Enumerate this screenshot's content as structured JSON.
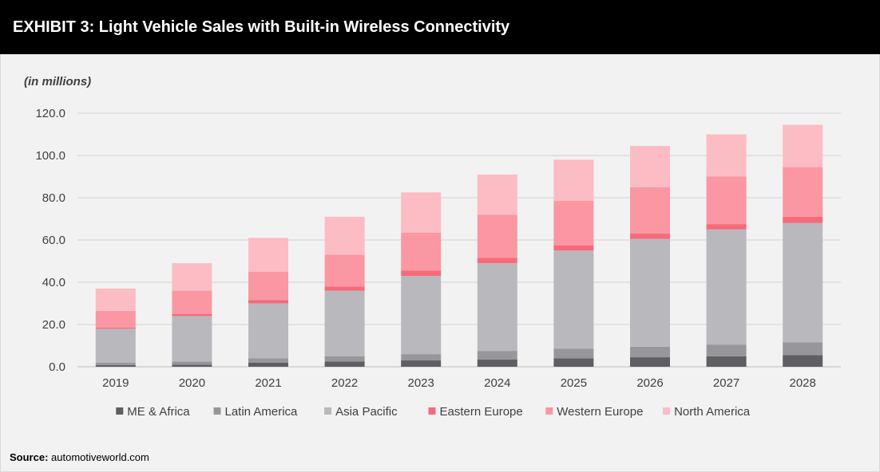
{
  "header": {
    "title": "EXHIBIT 3: Light Vehicle Sales with Built-in Wireless Connectivity"
  },
  "source": {
    "label": "Source:",
    "text": "automotiveworld.com"
  },
  "colors": {
    "ME & Africa": "#5f5f63",
    "Latin America": "#97979b",
    "Asia Pacific": "#b9b9bd",
    "Eastern Europe": "#f66a7a",
    "Western Europe": "#fa97a2",
    "North America": "#fcbcc3",
    "grid": "#d3d3d3",
    "background": "#f2f2f2"
  },
  "chart_data": {
    "type": "bar",
    "stacked": true,
    "unit_label": "(in millions)",
    "categories": [
      "2019",
      "2020",
      "2021",
      "2022",
      "2023",
      "2024",
      "2025",
      "2026",
      "2027",
      "2028"
    ],
    "series": [
      {
        "name": "ME & Africa",
        "values": [
          0.8,
          1.0,
          2.0,
          2.5,
          3.0,
          3.5,
          4.0,
          4.5,
          5.0,
          5.5
        ]
      },
      {
        "name": "Latin America",
        "values": [
          1.2,
          1.5,
          2.0,
          2.5,
          3.0,
          4.0,
          4.5,
          5.0,
          5.5,
          6.0
        ]
      },
      {
        "name": "Asia Pacific",
        "values": [
          16.0,
          21.5,
          26.0,
          31.0,
          37.0,
          41.5,
          46.5,
          51.0,
          54.5,
          56.5
        ]
      },
      {
        "name": "Eastern Europe",
        "values": [
          0.5,
          1.0,
          1.5,
          2.0,
          2.5,
          2.5,
          2.5,
          2.5,
          2.5,
          3.0
        ]
      },
      {
        "name": "Western Europe",
        "values": [
          8.0,
          11.0,
          13.5,
          15.0,
          18.0,
          20.5,
          21.0,
          22.0,
          22.5,
          23.5
        ]
      },
      {
        "name": "North America",
        "values": [
          10.5,
          13.0,
          16.0,
          18.0,
          19.0,
          19.0,
          19.5,
          19.5,
          20.0,
          20.0
        ]
      }
    ],
    "ylim": [
      0,
      120
    ],
    "yticks": [
      "0.0",
      "20.0",
      "40.0",
      "60.0",
      "80.0",
      "100.0",
      "120.0"
    ],
    "ytick_values": [
      0,
      20,
      40,
      60,
      80,
      100,
      120
    ],
    "grid": true,
    "legend_position": "bottom"
  }
}
